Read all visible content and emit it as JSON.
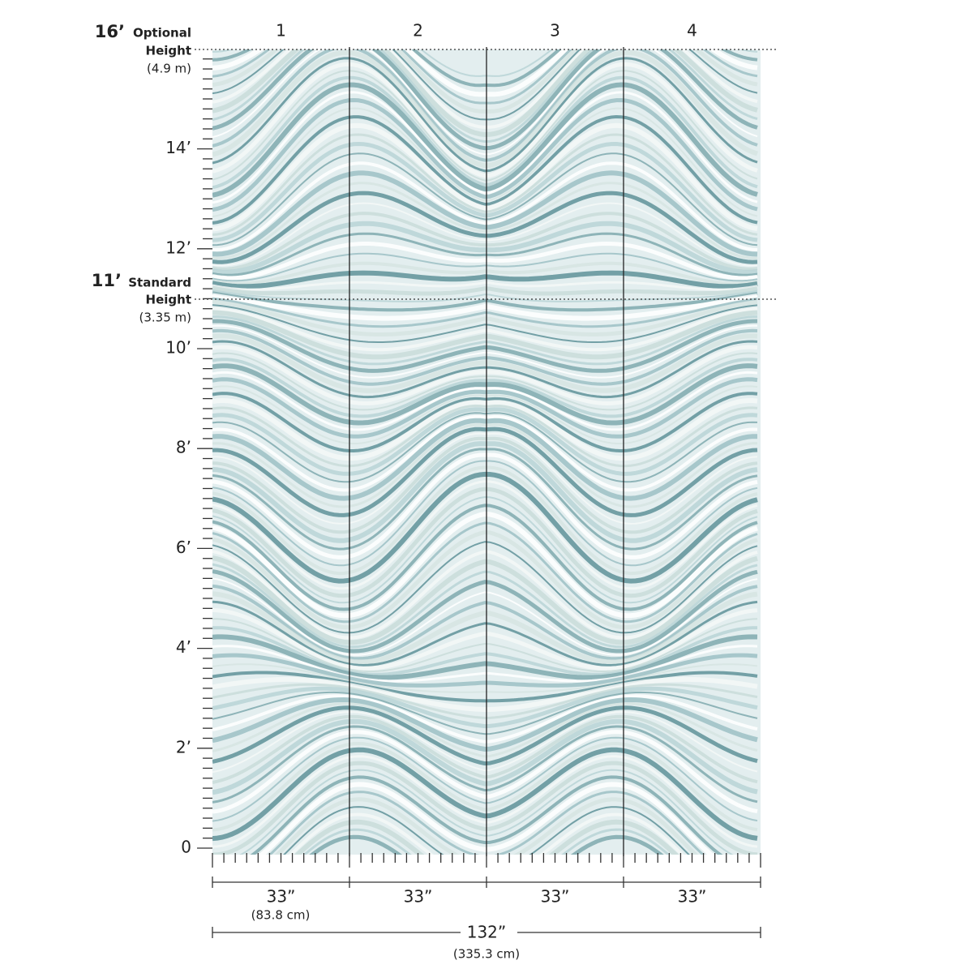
{
  "panels": [
    "1",
    "2",
    "3",
    "4"
  ],
  "optional_height": {
    "feet": "16’",
    "label": "Optional",
    "label2": "Height",
    "metric": "(4.9 m)"
  },
  "standard_height": {
    "feet": "11’",
    "label": "Standard",
    "label2": "Height",
    "metric": "(3.35 m)"
  },
  "height_ticks": [
    "0",
    "2’",
    "4’",
    "6’",
    "8’",
    "10’",
    "12’",
    "14’"
  ],
  "panel_widths": [
    "33”",
    "33”",
    "33”",
    "33”"
  ],
  "panel_width_metric": "(83.8 cm)",
  "total_width": "132”",
  "total_width_metric": "(335.3 cm)"
}
